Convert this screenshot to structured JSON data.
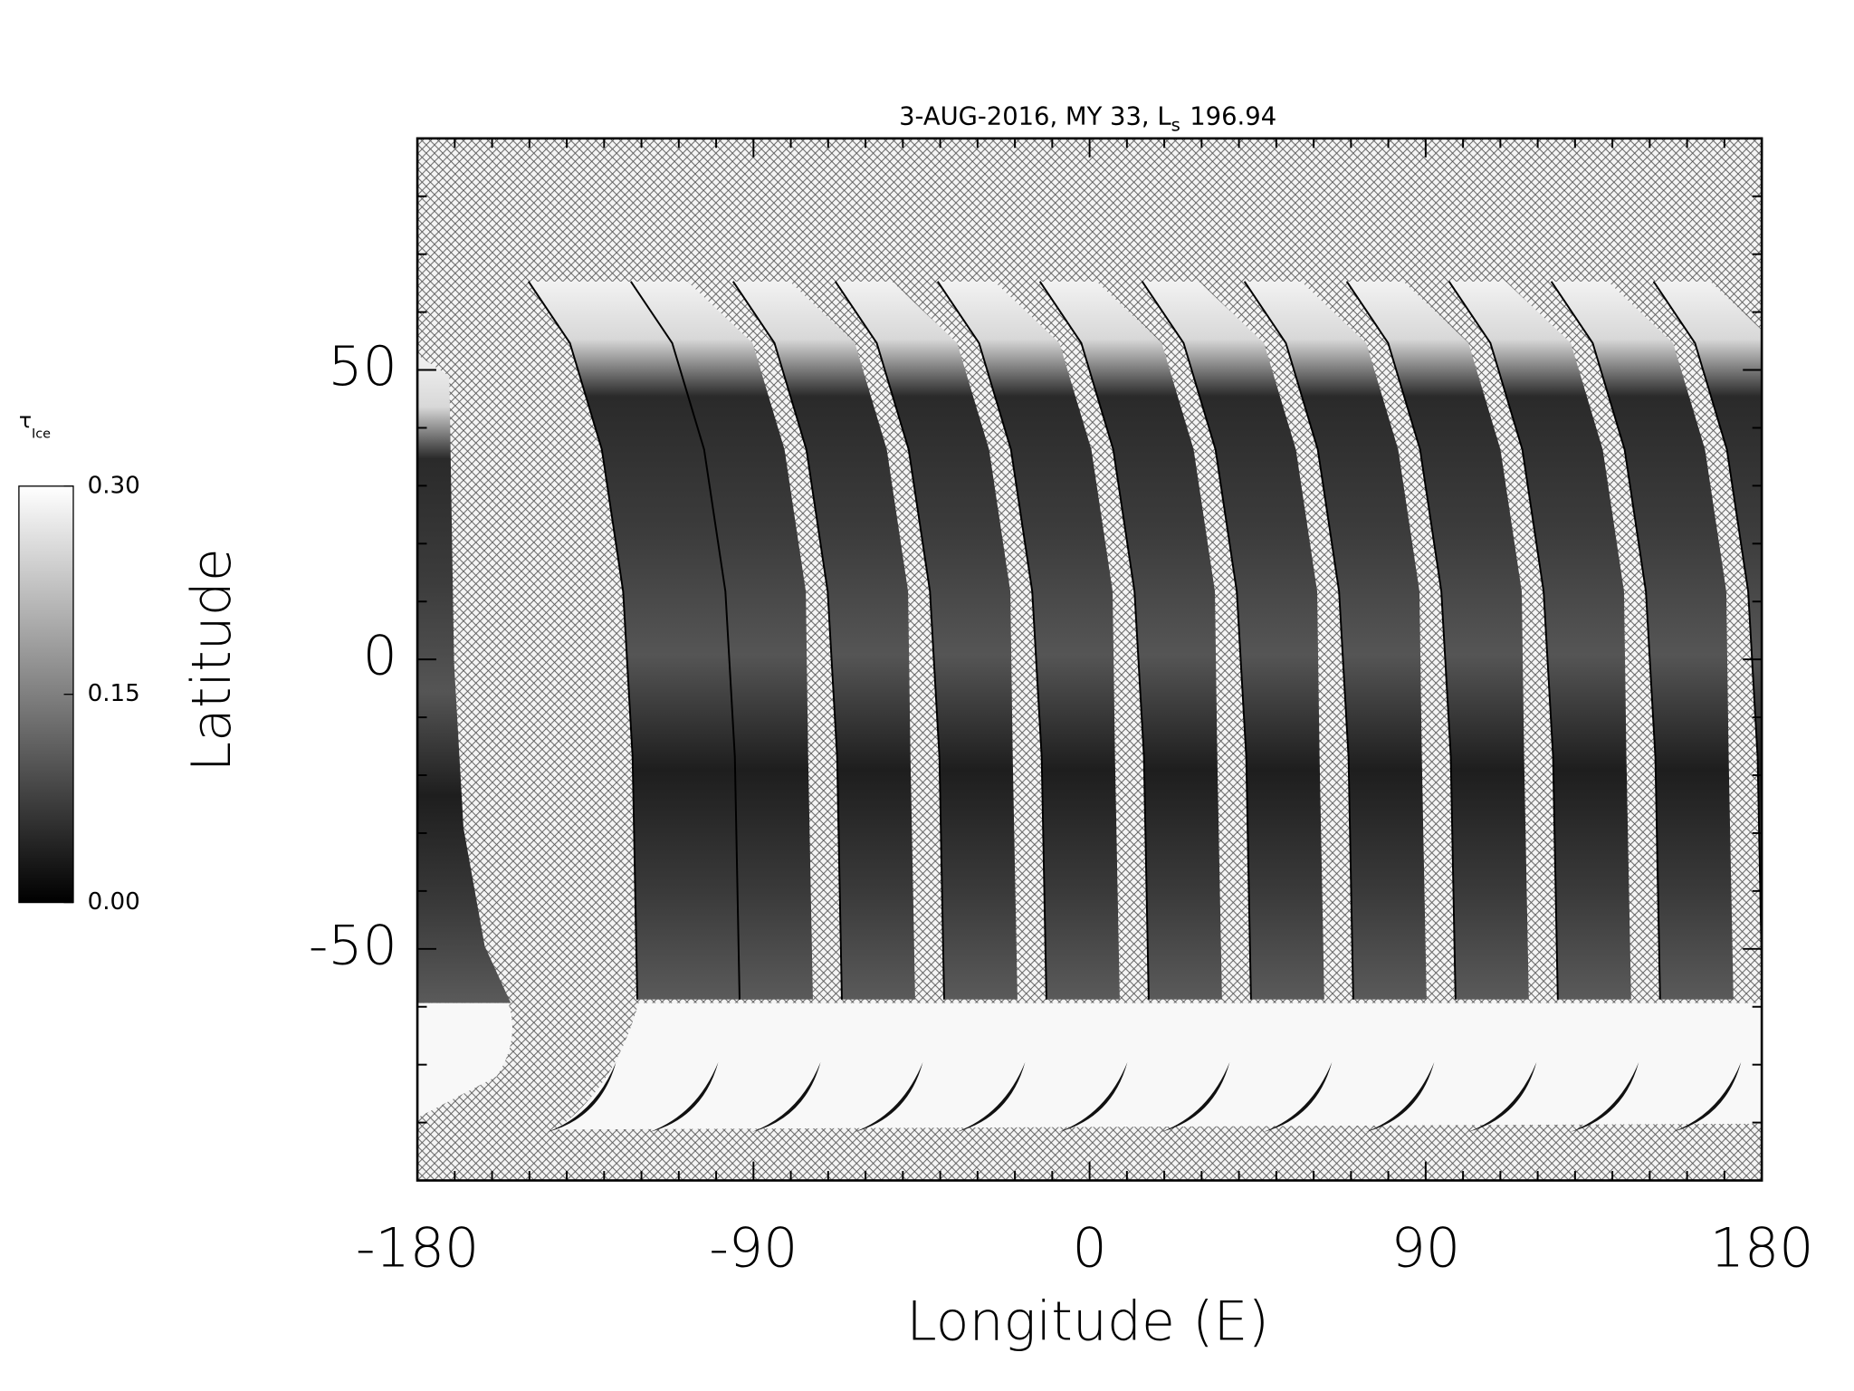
{
  "chart_data": {
    "type": "map",
    "title": {
      "text": "3-AUG-2016, MY 33,  L",
      "subscript": "s",
      "suffix": "196.94"
    },
    "xlabel": "Longitude (E)",
    "ylabel": "Latitude",
    "xlim": [
      -180,
      180
    ],
    "ylim": [
      -90,
      90
    ],
    "xticks": [
      -180,
      -90,
      0,
      90,
      180
    ],
    "yticks": [
      -50,
      0,
      50
    ],
    "xticks_minor": [
      -170,
      -160,
      -150,
      -140,
      -130,
      -120,
      -110,
      -100,
      -80,
      -70,
      -60,
      -50,
      -40,
      -30,
      -20,
      -10,
      10,
      20,
      30,
      40,
      50,
      60,
      70,
      80,
      100,
      110,
      120,
      130,
      140,
      150,
      160,
      170
    ],
    "yticks_minor": [
      -80,
      -70,
      -60,
      -40,
      -30,
      -20,
      -10,
      10,
      20,
      30,
      40,
      60,
      70,
      80
    ],
    "colorbar": {
      "label": "τ",
      "label_subscript": "Ice",
      "lim": [
        0,
        0.3
      ],
      "ticks": [
        {
          "value": 0,
          "label": "0.00"
        },
        {
          "value": 0.15,
          "label": "0.15"
        },
        {
          "value": 0.3,
          "label": "0.30"
        }
      ],
      "colormap": [
        "#000000",
        "#ffffff"
      ]
    },
    "missing_pattern": "crosshatch"
  }
}
